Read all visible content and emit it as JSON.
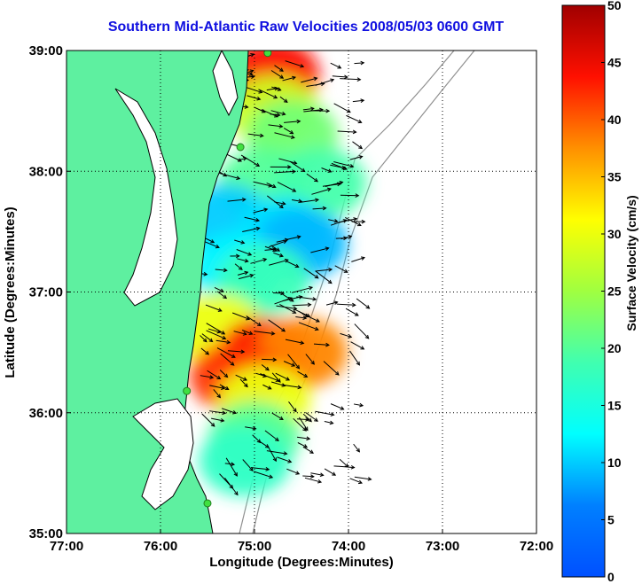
{
  "chart_data": {
    "type": "heatmap",
    "title": "Southern Mid-Atlantic Raw Velocities 2008/05/03 0600 GMT",
    "xlabel": "Longitude (Degrees:Minutes)",
    "ylabel": "Latitude (Degrees:Minutes)",
    "xlim": [
      -77,
      -72
    ],
    "ylim": [
      35,
      39
    ],
    "x_ticks": [
      {
        "value": -77,
        "label": "77:00"
      },
      {
        "value": -76,
        "label": "76:00"
      },
      {
        "value": -75,
        "label": "75:00"
      },
      {
        "value": -74,
        "label": "74:00"
      },
      {
        "value": -73,
        "label": "73:00"
      },
      {
        "value": -72,
        "label": "72:00"
      }
    ],
    "y_ticks": [
      {
        "value": 35,
        "label": "35:00"
      },
      {
        "value": 36,
        "label": "36:00"
      },
      {
        "value": 37,
        "label": "37:00"
      },
      {
        "value": 38,
        "label": "38:00"
      },
      {
        "value": 39,
        "label": "39:00"
      }
    ],
    "grid": true,
    "colorbar": {
      "label": "Surface Velocity (cm/s)",
      "range": [
        0,
        50
      ],
      "ticks": [
        0,
        5,
        10,
        15,
        20,
        25,
        30,
        35,
        40,
        45,
        50
      ],
      "colormap": "jet"
    },
    "velocity_regions": [
      {
        "lon": -74.8,
        "lat": 38.8,
        "speed": 44
      },
      {
        "lon": -74.8,
        "lat": 38.5,
        "speed": 28
      },
      {
        "lon": -74.6,
        "lat": 38.3,
        "speed": 22
      },
      {
        "lon": -74.9,
        "lat": 37.9,
        "speed": 20
      },
      {
        "lon": -74.3,
        "lat": 37.9,
        "speed": 19
      },
      {
        "lon": -75.3,
        "lat": 37.6,
        "speed": 10
      },
      {
        "lon": -74.7,
        "lat": 37.5,
        "speed": 11
      },
      {
        "lon": -74.5,
        "lat": 37.4,
        "speed": 9
      },
      {
        "lon": -75.2,
        "lat": 37.2,
        "speed": 12
      },
      {
        "lon": -74.9,
        "lat": 37.1,
        "speed": 18
      },
      {
        "lon": -75.4,
        "lat": 36.7,
        "speed": 30
      },
      {
        "lon": -74.9,
        "lat": 36.5,
        "speed": 44
      },
      {
        "lon": -74.5,
        "lat": 36.5,
        "speed": 38
      },
      {
        "lon": -75.2,
        "lat": 36.3,
        "speed": 42
      },
      {
        "lon": -74.9,
        "lat": 36.1,
        "speed": 30
      },
      {
        "lon": -75.0,
        "lat": 35.8,
        "speed": 20
      },
      {
        "lon": -75.1,
        "lat": 35.6,
        "speed": 17
      }
    ],
    "sites": [
      {
        "lon": -74.86,
        "lat": 38.98
      },
      {
        "lon": -75.15,
        "lat": 38.2
      },
      {
        "lon": -75.72,
        "lat": 36.18
      },
      {
        "lon": -75.5,
        "lat": 35.25
      }
    ],
    "colors": {
      "land": "#5ef0a0",
      "coast": "#000000",
      "bathymetry": "#909090",
      "title": "#1010e0",
      "vectors": "#000000"
    }
  }
}
